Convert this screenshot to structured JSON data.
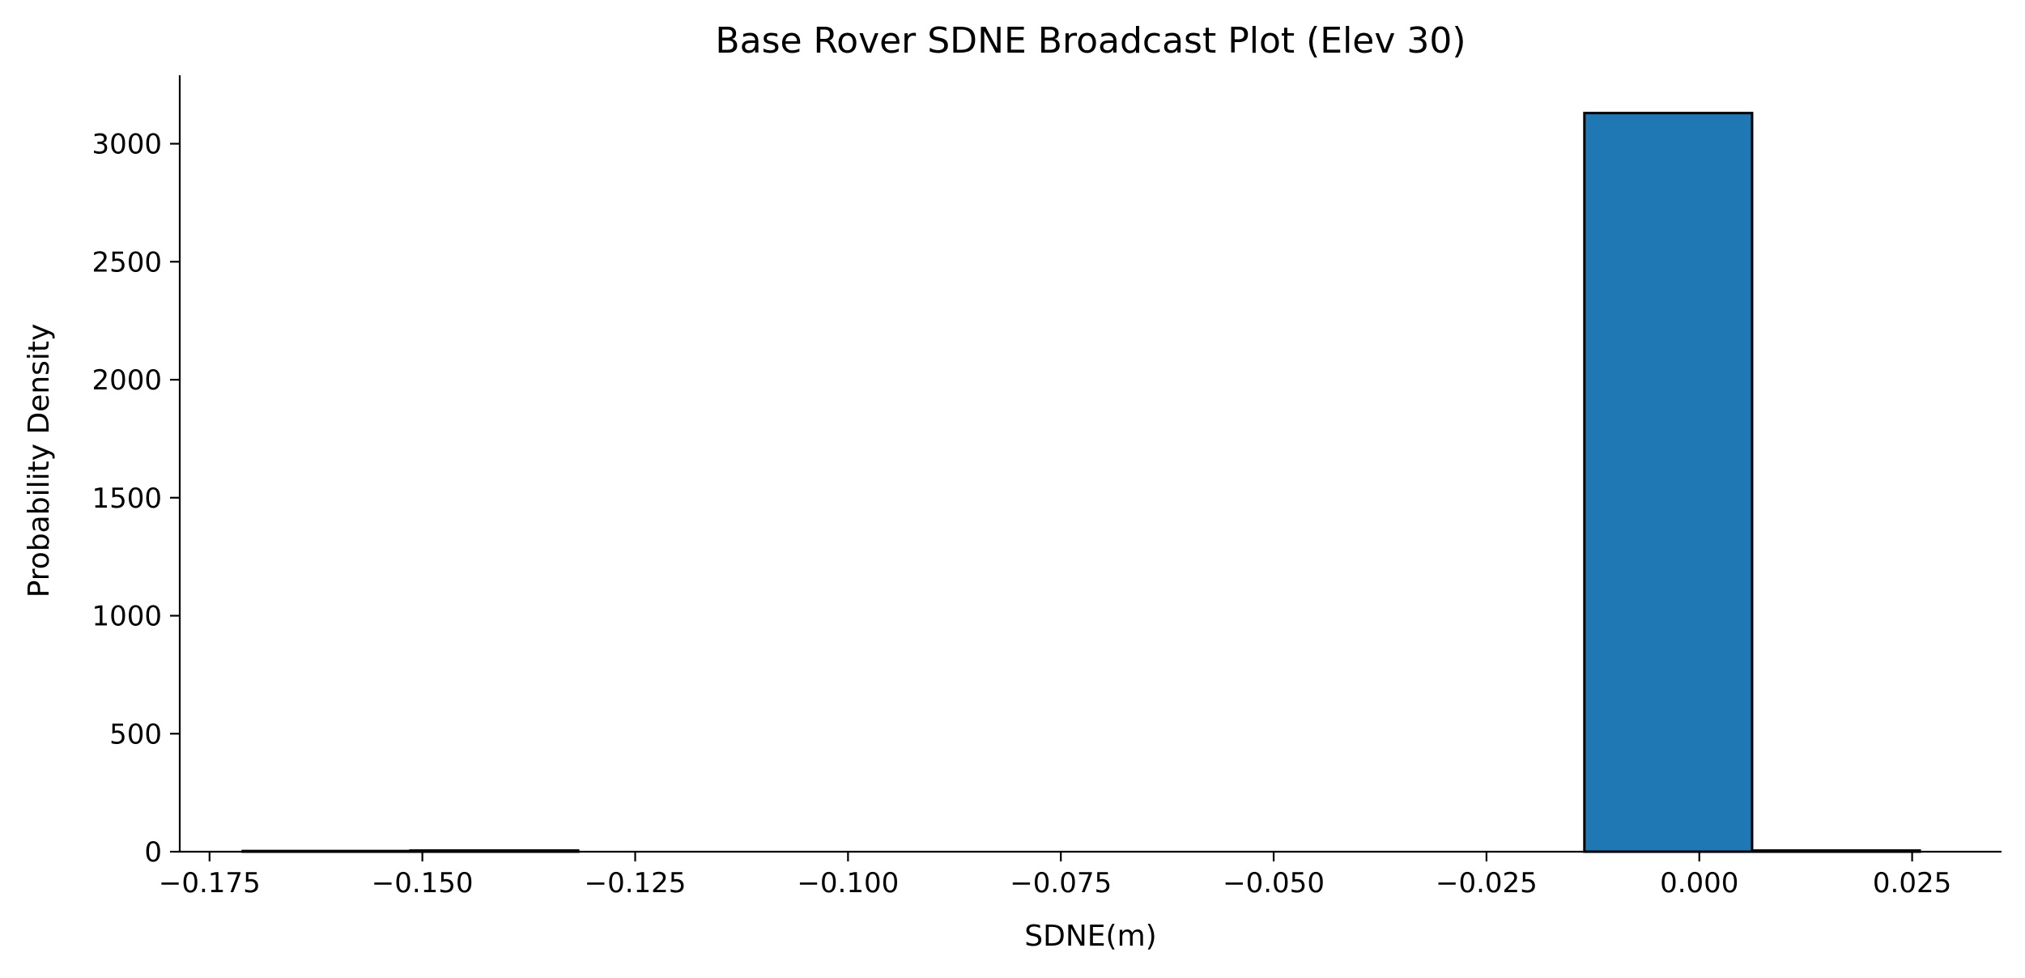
{
  "chart_data": {
    "type": "bar",
    "title": "Base Rover SDNE Broadcast Plot (Elev 30)",
    "xlabel": "SDNE(m)",
    "ylabel": "Probability Density",
    "xlim": [
      -0.1785,
      0.0355
    ],
    "ylim": [
      0,
      3290
    ],
    "x_ticks": [
      -0.175,
      -0.15,
      -0.125,
      -0.1,
      -0.075,
      -0.05,
      -0.025,
      0.0,
      0.025
    ],
    "x_tick_labels": [
      "−0.175",
      "−0.150",
      "−0.125",
      "−0.100",
      "−0.075",
      "−0.050",
      "−0.025",
      "0.000",
      "0.025"
    ],
    "y_ticks": [
      0,
      500,
      1000,
      1500,
      2000,
      2500,
      3000
    ],
    "y_tick_labels": [
      "0",
      "500",
      "1000",
      "1500",
      "2000",
      "2500",
      "3000"
    ],
    "bins": [
      {
        "x0": -0.1711,
        "x1": -0.1514,
        "value": 3
      },
      {
        "x0": -0.1514,
        "x1": -0.1317,
        "value": 5
      },
      {
        "x0": -0.1317,
        "x1": -0.112,
        "value": 0
      },
      {
        "x0": -0.112,
        "x1": -0.0923,
        "value": 0
      },
      {
        "x0": -0.0923,
        "x1": -0.0726,
        "value": 0
      },
      {
        "x0": -0.0726,
        "x1": -0.0529,
        "value": 0
      },
      {
        "x0": -0.0529,
        "x1": -0.0332,
        "value": 0
      },
      {
        "x0": -0.0332,
        "x1": -0.0135,
        "value": 0
      },
      {
        "x0": -0.0135,
        "x1": 0.0062,
        "value": 3130
      },
      {
        "x0": 0.0062,
        "x1": 0.0259,
        "value": 5
      }
    ],
    "bar_color": "#1f77b4",
    "edge_color": "#000000",
    "grid": false,
    "spines": "left-bottom"
  }
}
